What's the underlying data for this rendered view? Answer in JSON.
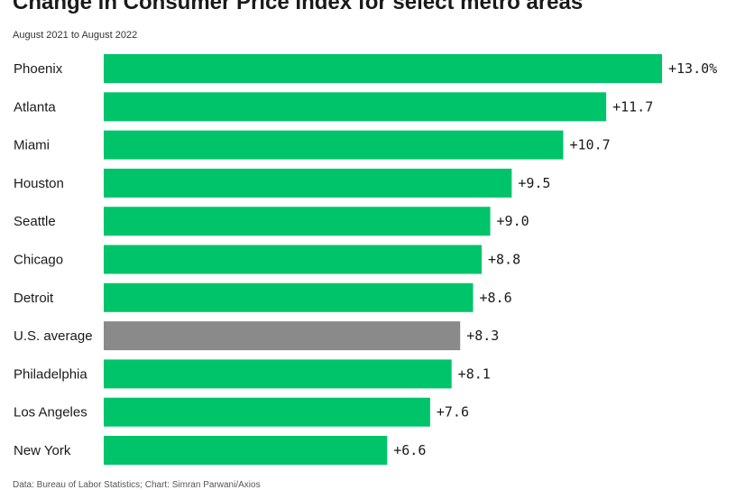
{
  "header": {
    "title": "Change in Consumer Price Index for select metro areas",
    "subtitle": "August 2021 to August 2022"
  },
  "footer": {
    "source": "Data: Bureau of Labor Statistics; Chart: Simran Parwani/Axios"
  },
  "colors": {
    "metro": "#00c46a",
    "average": "#8a8a8a"
  },
  "chart_data": {
    "type": "bar",
    "orientation": "horizontal",
    "title": "Change in Consumer Price Index for select metro areas",
    "subtitle": "August 2021 to August 2022",
    "categories": [
      "Phoenix",
      "Atlanta",
      "Miami",
      "Houston",
      "Seattle",
      "Chicago",
      "Detroit",
      "U.S. average",
      "Philadelphia",
      "Los Angeles",
      "New York"
    ],
    "values": [
      13.0,
      11.7,
      10.7,
      9.5,
      9.0,
      8.8,
      8.6,
      8.3,
      8.1,
      7.6,
      6.6
    ],
    "value_labels": [
      "+13.0%",
      "+11.7",
      "+10.7",
      "+9.5",
      "+9.0",
      "+8.8",
      "+8.6",
      "+8.3",
      "+8.1",
      "+7.6",
      "+6.6"
    ],
    "highlight": "U.S. average",
    "xlim": [
      0,
      13.0
    ],
    "grid": false,
    "legend": "none"
  }
}
